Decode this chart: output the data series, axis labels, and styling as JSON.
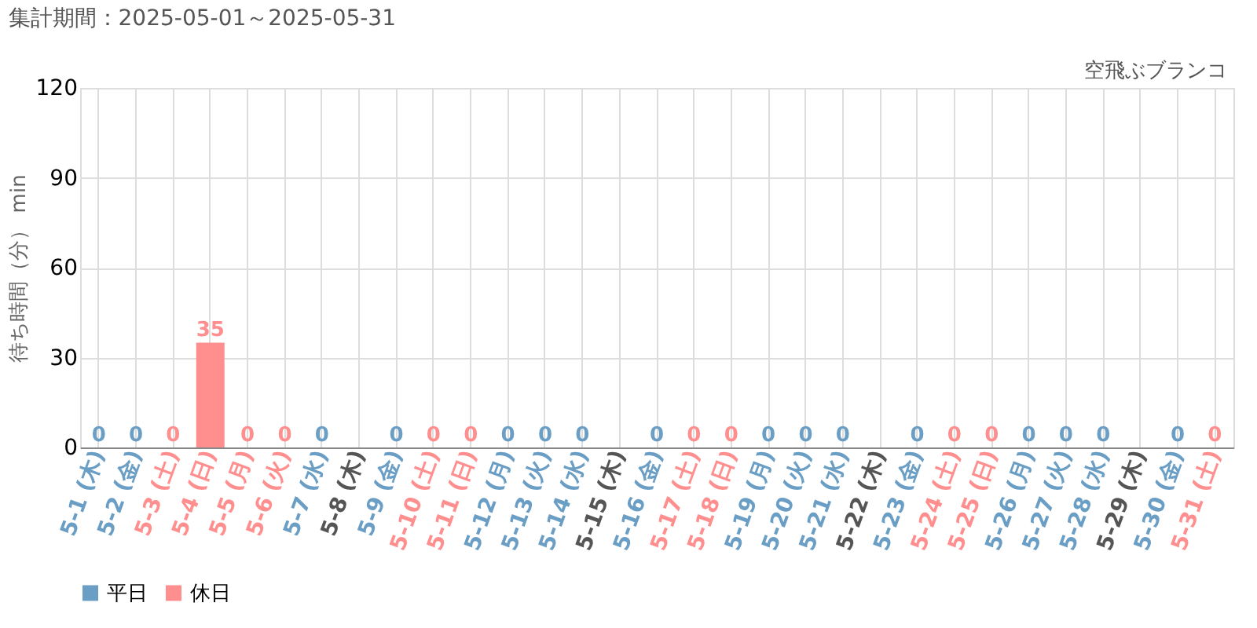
{
  "chart_data": {
    "type": "bar",
    "title": "集計期間：2025-05-01～2025-05-31",
    "annotations": [
      "空飛ぶブランコ"
    ],
    "ylabel": "待ち時間（分） min",
    "categories": [
      "5-1 (木)",
      "5-2 (金)",
      "5-3 (土)",
      "5-4 (日)",
      "5-5 (月)",
      "5-6 (火)",
      "5-7 (水)",
      "5-8 (木)",
      "5-9 (金)",
      "5-10 (土)",
      "5-11 (日)",
      "5-12 (月)",
      "5-13 (火)",
      "5-14 (水)",
      "5-15 (木)",
      "5-16 (金)",
      "5-17 (土)",
      "5-18 (日)",
      "5-19 (月)",
      "5-20 (火)",
      "5-21 (水)",
      "5-22 (木)",
      "5-23 (金)",
      "5-24 (土)",
      "5-25 (日)",
      "5-26 (月)",
      "5-27 (火)",
      "5-28 (水)",
      "5-29 (木)",
      "5-30 (金)",
      "5-31 (土)"
    ],
    "series": [
      {
        "name": "平日",
        "color": "#6a9ec5",
        "values": [
          0,
          0,
          null,
          null,
          null,
          null,
          0,
          null,
          0,
          null,
          null,
          0,
          0,
          0,
          null,
          0,
          null,
          null,
          0,
          0,
          0,
          null,
          0,
          null,
          null,
          0,
          0,
          0,
          null,
          0,
          null
        ]
      },
      {
        "name": "休日",
        "color": "#ff8f8f",
        "values": [
          null,
          null,
          0,
          35,
          0,
          0,
          null,
          null,
          null,
          0,
          0,
          null,
          null,
          null,
          null,
          null,
          0,
          0,
          null,
          null,
          null,
          null,
          null,
          0,
          0,
          null,
          null,
          null,
          null,
          null,
          0
        ]
      }
    ],
    "ylim": [
      0,
      120
    ],
    "yticks": [
      0,
      30,
      60,
      90,
      120
    ],
    "grid": true,
    "legend": "bottom",
    "data_labels": true
  }
}
